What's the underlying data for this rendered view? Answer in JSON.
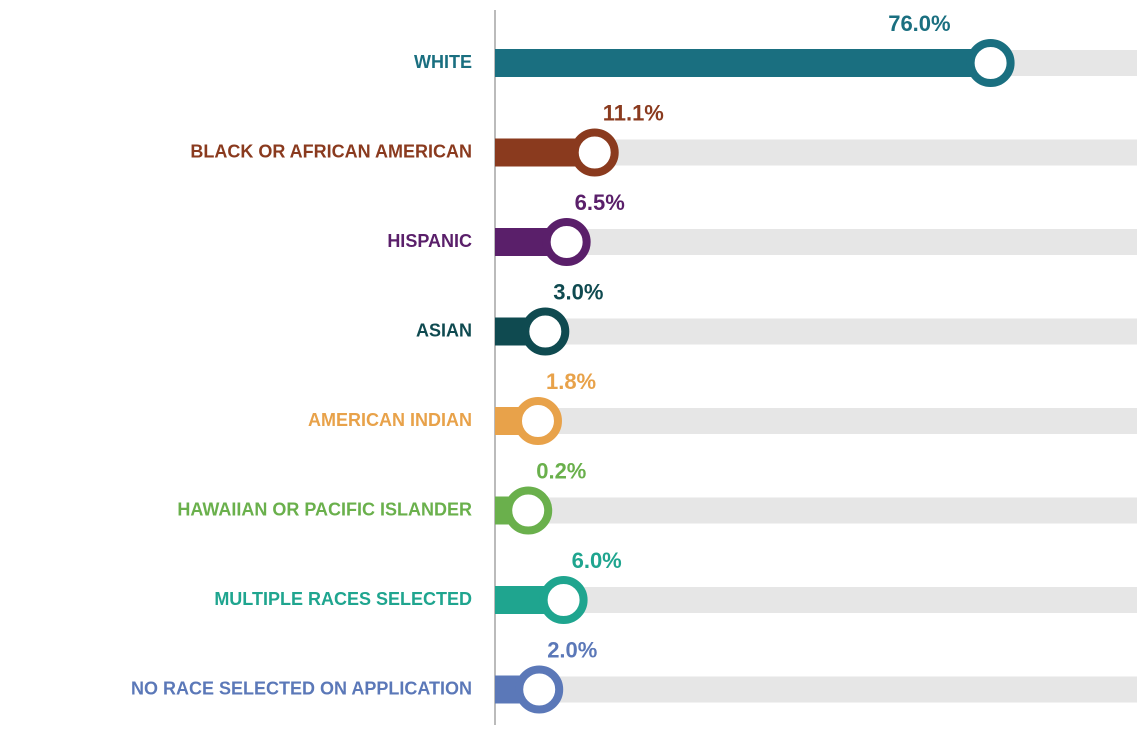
{
  "chart_data": {
    "type": "lollipop",
    "categories": [
      "WHITE",
      "BLACK OR AFRICAN AMERICAN",
      "HISPANIC",
      "ASIAN",
      "AMERICAN INDIAN",
      "HAWAIIAN OR PACIFIC ISLANDER",
      "MULTIPLE RACES SELECTED",
      "NO RACE SELECTED ON APPLICATION"
    ],
    "values": [
      76.0,
      11.1,
      6.5,
      3.0,
      1.8,
      0.2,
      6.0,
      2.0
    ],
    "value_labels": [
      "76.0%",
      "11.1%",
      "6.5%",
      "3.0%",
      "1.8%",
      "0.2%",
      "6.0%",
      "2.0%"
    ],
    "colors": [
      "#1a6f80",
      "#8a3a1e",
      "#5a1f6a",
      "#0f4a50",
      "#e8a24a",
      "#6ab04c",
      "#1fa58f",
      "#5b78b8"
    ],
    "xlim": [
      0,
      100
    ]
  }
}
